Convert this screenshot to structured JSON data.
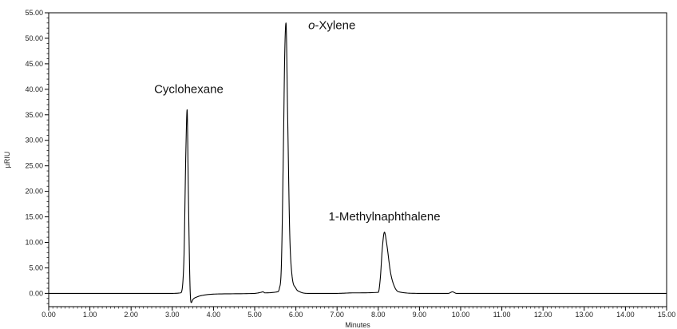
{
  "chart_data": {
    "type": "line",
    "title": "",
    "xlabel": "Minutes",
    "ylabel": "µRIU",
    "xlim": [
      0,
      15
    ],
    "ylim": [
      -2.6,
      55
    ],
    "grid": false,
    "legend": "none",
    "x_ticks": [
      "0.00",
      "1.00",
      "2.00",
      "3.00",
      "4.00",
      "5.00",
      "6.00",
      "7.00",
      "8.00",
      "9.00",
      "10.00",
      "11.00",
      "12.00",
      "13.00",
      "14.00",
      "15.00"
    ],
    "y_ticks": [
      "0.00",
      "5.00",
      "10.00",
      "15.00",
      "20.00",
      "25.00",
      "30.00",
      "35.00",
      "40.00",
      "45.00",
      "50.00",
      "55.00"
    ],
    "line_color": "#000000",
    "series": [
      {
        "x": [
          0,
          3.0,
          3.2,
          3.28,
          3.33,
          3.36,
          3.39,
          3.43,
          3.46,
          3.5,
          3.6,
          3.8,
          4.2,
          5.0,
          5.15,
          5.2,
          5.25,
          5.55,
          5.6,
          5.65,
          5.7,
          5.73,
          5.76,
          5.8,
          5.85,
          5.9,
          6.0,
          6.1,
          6.3,
          7.0,
          7.4,
          8.0,
          8.05,
          8.1,
          8.15,
          8.2,
          8.3,
          8.4,
          8.5,
          9.0,
          9.7,
          9.8,
          9.9,
          15.0
        ],
        "y": [
          0,
          0,
          0.1,
          6,
          28,
          36,
          20,
          1.5,
          -1.8,
          -1.2,
          -0.7,
          -0.3,
          -0.1,
          0,
          0.2,
          0.3,
          0.1,
          0.3,
          1,
          6,
          30,
          47,
          53,
          35,
          12,
          4,
          1,
          0.3,
          0,
          0,
          0.1,
          0.2,
          3,
          9,
          12,
          10,
          4,
          1.2,
          0.3,
          0,
          0,
          0.3,
          0,
          0
        ]
      }
    ],
    "annotations": [
      {
        "text": "Cyclohexane",
        "x": 3.4,
        "y": 39.3
      },
      {
        "text_italic": "o",
        "text": "-Xylene",
        "x": 6.3,
        "y": 51.8
      },
      {
        "text": "1-Methylnaphthalene",
        "x": 8.15,
        "y": 14.3
      }
    ]
  }
}
